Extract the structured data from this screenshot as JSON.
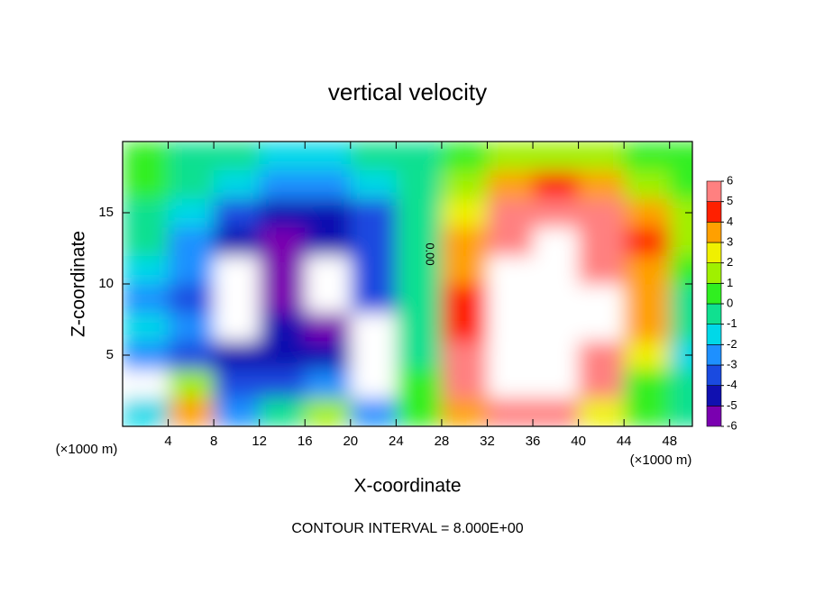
{
  "chart_data": {
    "type": "contour",
    "title": "vertical velocity",
    "x_label": "X-coordinate",
    "y_label": "Z-coordinate",
    "x_unit": "(×1000 m)",
    "footer": "CONTOUR INTERVAL = 8.000E+00",
    "contour_label": "0.00",
    "xlim": [
      0,
      50
    ],
    "ylim": [
      0,
      20
    ],
    "xticks": [
      4,
      8,
      12,
      16,
      20,
      24,
      28,
      32,
      36,
      40,
      44,
      48
    ],
    "yticks": [
      5,
      10,
      15
    ],
    "x": [
      2,
      6,
      10,
      14,
      18,
      22,
      26,
      30,
      34,
      38,
      42,
      46,
      50
    ],
    "y": [
      1,
      3,
      5,
      7,
      9,
      11,
      13,
      15,
      17,
      19
    ],
    "z": [
      [
        -2,
        3,
        -3,
        -1,
        1,
        -3,
        0,
        3,
        5,
        5,
        2,
        0,
        -1
      ],
      [
        -7,
        1,
        -4,
        -4,
        -3,
        -7,
        0,
        5,
        7,
        7,
        5,
        0,
        -1
      ],
      [
        -3,
        -3.5,
        -5,
        -5,
        -5,
        -7,
        -1,
        5,
        7,
        8,
        6,
        2,
        -1.5
      ],
      [
        -2,
        -3,
        -7,
        -5,
        -6,
        -7,
        -1,
        4,
        7,
        8,
        7,
        3,
        -1
      ],
      [
        -3,
        -3.5,
        -7,
        -5.5,
        -7,
        -4,
        -1,
        4,
        7,
        7,
        7,
        3,
        -1
      ],
      [
        -2,
        -3,
        -7,
        -6,
        -7,
        -4,
        -1,
        3,
        7,
        7,
        6,
        3,
        0
      ],
      [
        -1,
        -3,
        -5,
        -5.5,
        -5,
        -3.5,
        -1,
        3,
        6,
        7,
        6,
        4,
        1
      ],
      [
        -0.5,
        -2,
        -4,
        -5,
        -5,
        -3.5,
        -1,
        2,
        5,
        6,
        5,
        3,
        1
      ],
      [
        0,
        -1,
        -2,
        -3,
        -3,
        -2,
        -0.5,
        1,
        3,
        4,
        3,
        1.5,
        0.5
      ],
      [
        0,
        -0.5,
        -1,
        -1.5,
        -1.5,
        -1,
        -0.3,
        0.5,
        1,
        1.2,
        1,
        0.5,
        0.3
      ]
    ],
    "colorbar": {
      "lim": [
        -6,
        6
      ],
      "ticks": [
        -6,
        -5,
        -4,
        -3,
        -2,
        -1,
        0,
        1,
        2,
        3,
        4,
        5,
        6
      ],
      "colors": [
        "#7a00b0",
        "#1010b0",
        "#1a4ae0",
        "#1e90ff",
        "#00d8e8",
        "#10e090",
        "#30ef20",
        "#a0f000",
        "#f0f000",
        "#ffa000",
        "#ff2000",
        "#ff8080"
      ]
    }
  }
}
